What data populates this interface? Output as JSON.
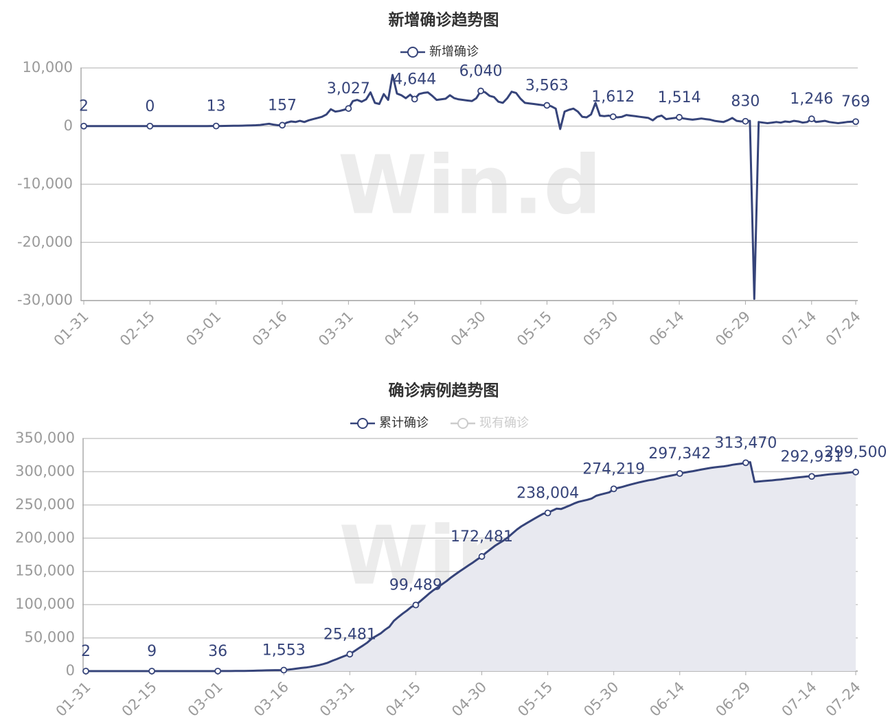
{
  "chart_data": [
    {
      "type": "line",
      "title": "新增确诊趋势图",
      "watermark": "Win.d",
      "legend": "top",
      "grid": true,
      "categories": [
        "01-31",
        null,
        null,
        null,
        null,
        null,
        null,
        null,
        null,
        null,
        null,
        null,
        null,
        null,
        null,
        "02-15",
        null,
        null,
        null,
        null,
        null,
        null,
        null,
        null,
        null,
        null,
        null,
        null,
        null,
        null,
        "03-01",
        null,
        null,
        null,
        null,
        null,
        null,
        null,
        null,
        null,
        null,
        null,
        null,
        null,
        null,
        "03-16",
        null,
        null,
        null,
        null,
        null,
        null,
        null,
        null,
        null,
        null,
        null,
        null,
        null,
        null,
        "03-31",
        null,
        null,
        null,
        null,
        null,
        null,
        null,
        null,
        null,
        null,
        null,
        null,
        null,
        null,
        "04-15",
        null,
        null,
        null,
        null,
        null,
        null,
        null,
        null,
        null,
        null,
        null,
        null,
        null,
        null,
        "04-30",
        null,
        null,
        null,
        null,
        null,
        null,
        null,
        null,
        null,
        null,
        null,
        null,
        null,
        null,
        "05-15",
        null,
        null,
        null,
        null,
        null,
        null,
        null,
        null,
        null,
        null,
        null,
        null,
        null,
        null,
        "05-30",
        null,
        null,
        null,
        null,
        null,
        null,
        null,
        null,
        null,
        null,
        null,
        null,
        null,
        null,
        "06-14",
        null,
        null,
        null,
        null,
        null,
        null,
        null,
        null,
        null,
        null,
        null,
        null,
        null,
        null,
        "06-29",
        null,
        null,
        null,
        null,
        null,
        null,
        null,
        null,
        null,
        null,
        null,
        null,
        null,
        null,
        "07-14",
        null,
        null,
        null,
        null,
        null,
        null,
        null,
        null,
        null,
        "07-24"
      ],
      "ylim": [
        -30000,
        10000
      ],
      "yticks": [
        {
          "value": -30000,
          "label": "-30,000"
        },
        {
          "value": -20000,
          "label": "-20,000"
        },
        {
          "value": -10000,
          "label": "-10,000"
        },
        0,
        {
          "value": 10000,
          "label": "10,000"
        }
      ],
      "series": [
        {
          "name": "新增确诊",
          "color": "#36447a",
          "values": [
            2,
            1,
            0,
            0,
            0,
            0,
            0,
            0,
            0,
            0,
            0,
            0,
            0,
            0,
            0,
            0,
            0,
            0,
            0,
            0,
            0,
            1,
            2,
            2,
            3,
            3,
            5,
            8,
            10,
            12,
            13,
            20,
            30,
            40,
            50,
            60,
            80,
            100,
            120,
            150,
            200,
            300,
            400,
            250,
            150,
            157,
            600,
            800,
            700,
            900,
            700,
            1000,
            1200,
            1400,
            1600,
            2000,
            2900,
            2500,
            2600,
            2800,
            3027,
            4300,
            4500,
            4200,
            4600,
            5800,
            4000,
            3800,
            5500,
            4500,
            8800,
            5600,
            5300,
            4800,
            5400,
            4644,
            5500,
            5700,
            5800,
            5200,
            4500,
            4600,
            4700,
            5300,
            4800,
            4600,
            4500,
            4400,
            4300,
            4800,
            6040,
            5800,
            5200,
            5000,
            4200,
            4000,
            4800,
            5900,
            5700,
            4700,
            4000,
            3900,
            3800,
            3700,
            3600,
            3563,
            3400,
            3000,
            -500,
            2500,
            2800,
            3000,
            2500,
            1600,
            1500,
            2000,
            4000,
            1800,
            1700,
            1800,
            1612,
            1500,
            1600,
            1900,
            1800,
            1700,
            1600,
            1500,
            1400,
            1000,
            1600,
            1800,
            1200,
            1300,
            1400,
            1514,
            1300,
            1200,
            1100,
            1200,
            1300,
            1200,
            1100,
            900,
            800,
            700,
            1000,
            1400,
            900,
            800,
            830,
            900,
            -29700,
            700,
            600,
            500,
            600,
            700,
            600,
            800,
            700,
            900,
            800,
            600,
            700,
            1246,
            700,
            800,
            900,
            700,
            600,
            500,
            600,
            700,
            750,
            769
          ],
          "value_labels": [
            "2",
            null,
            null,
            null,
            null,
            null,
            null,
            null,
            null,
            null,
            null,
            null,
            null,
            null,
            null,
            "0",
            null,
            null,
            null,
            null,
            null,
            null,
            null,
            null,
            null,
            null,
            null,
            null,
            null,
            null,
            "13",
            null,
            null,
            null,
            null,
            null,
            null,
            null,
            null,
            null,
            null,
            null,
            null,
            null,
            null,
            "157",
            null,
            null,
            null,
            null,
            null,
            null,
            null,
            null,
            null,
            null,
            null,
            null,
            null,
            null,
            "3,027",
            null,
            null,
            null,
            null,
            null,
            null,
            null,
            null,
            null,
            null,
            null,
            null,
            null,
            null,
            "4,644",
            null,
            null,
            null,
            null,
            null,
            null,
            null,
            null,
            null,
            null,
            null,
            null,
            null,
            null,
            "6,040",
            null,
            null,
            null,
            null,
            null,
            null,
            null,
            null,
            null,
            null,
            null,
            null,
            null,
            null,
            "3,563",
            null,
            null,
            null,
            null,
            null,
            null,
            null,
            null,
            null,
            null,
            null,
            null,
            null,
            null,
            "1,612",
            null,
            null,
            null,
            null,
            null,
            null,
            null,
            null,
            null,
            null,
            null,
            null,
            null,
            null,
            "1,514",
            null,
            null,
            null,
            null,
            null,
            null,
            null,
            null,
            null,
            null,
            null,
            null,
            null,
            null,
            "830",
            null,
            null,
            null,
            null,
            null,
            null,
            null,
            null,
            null,
            null,
            null,
            null,
            null,
            null,
            "1,246",
            null,
            null,
            null,
            null,
            null,
            null,
            null,
            null,
            null,
            "769"
          ]
        }
      ]
    },
    {
      "type": "line",
      "title": "确诊病例趋势图",
      "watermark": "Win.d",
      "legend": "top",
      "grid": true,
      "area": true,
      "area_color": "#e8e9f0",
      "categories": [
        "01-31",
        null,
        null,
        null,
        null,
        null,
        null,
        null,
        null,
        null,
        null,
        null,
        null,
        null,
        null,
        "02-15",
        null,
        null,
        null,
        null,
        null,
        null,
        null,
        null,
        null,
        null,
        null,
        null,
        null,
        null,
        "03-01",
        null,
        null,
        null,
        null,
        null,
        null,
        null,
        null,
        null,
        null,
        null,
        null,
        null,
        null,
        "03-16",
        null,
        null,
        null,
        null,
        null,
        null,
        null,
        null,
        null,
        null,
        null,
        null,
        null,
        null,
        "03-31",
        null,
        null,
        null,
        null,
        null,
        null,
        null,
        null,
        null,
        null,
        null,
        null,
        null,
        null,
        "04-15",
        null,
        null,
        null,
        null,
        null,
        null,
        null,
        null,
        null,
        null,
        null,
        null,
        null,
        null,
        "04-30",
        null,
        null,
        null,
        null,
        null,
        null,
        null,
        null,
        null,
        null,
        null,
        null,
        null,
        null,
        "05-15",
        null,
        null,
        null,
        null,
        null,
        null,
        null,
        null,
        null,
        null,
        null,
        null,
        null,
        null,
        "05-30",
        null,
        null,
        null,
        null,
        null,
        null,
        null,
        null,
        null,
        null,
        null,
        null,
        null,
        null,
        "06-14",
        null,
        null,
        null,
        null,
        null,
        null,
        null,
        null,
        null,
        null,
        null,
        null,
        null,
        null,
        "06-29",
        null,
        null,
        null,
        null,
        null,
        null,
        null,
        null,
        null,
        null,
        null,
        null,
        null,
        null,
        "07-14",
        null,
        null,
        null,
        null,
        null,
        null,
        null,
        null,
        null,
        "07-24"
      ],
      "ylim": [
        0,
        350000
      ],
      "yticks": [
        0,
        {
          "value": 50000,
          "label": "50,000"
        },
        {
          "value": 100000,
          "label": "100,000"
        },
        {
          "value": 150000,
          "label": "150,000"
        },
        {
          "value": 200000,
          "label": "200,000"
        },
        {
          "value": 250000,
          "label": "250,000"
        },
        {
          "value": 300000,
          "label": "300,000"
        },
        {
          "value": 350000,
          "label": "350,000"
        }
      ],
      "series": [
        {
          "name": "累计确诊",
          "color": "#36447a",
          "values": [
            2,
            3,
            3,
            4,
            5,
            5,
            6,
            6,
            7,
            7,
            8,
            8,
            8,
            9,
            9,
            9,
            10,
            10,
            11,
            12,
            13,
            14,
            16,
            18,
            20,
            22,
            25,
            28,
            31,
            34,
            36,
            56,
            86,
            126,
            176,
            236,
            316,
            416,
            536,
            686,
            886,
            1100,
            1300,
            1400,
            1450,
            1553,
            2200,
            3000,
            3800,
            4700,
            5400,
            6400,
            7600,
            9000,
            10600,
            12600,
            15500,
            18000,
            20600,
            23200,
            25481,
            29800,
            34300,
            38500,
            43100,
            48900,
            52900,
            56700,
            62200,
            66700,
            75500,
            81100,
            86400,
            91200,
            96600,
            99489,
            105000,
            110700,
            116500,
            121700,
            126200,
            130800,
            135500,
            140800,
            145600,
            150200,
            154700,
            159100,
            163400,
            168200,
            172481,
            178300,
            183500,
            188500,
            192700,
            196700,
            201500,
            207400,
            213100,
            217800,
            221800,
            225700,
            229500,
            233200,
            236800,
            238004,
            241400,
            244400,
            243900,
            246400,
            249200,
            252200,
            254700,
            256300,
            257800,
            259800,
            263800,
            265600,
            267300,
            269100,
            274219,
            275700,
            277300,
            279200,
            281000,
            282700,
            284300,
            285800,
            287200,
            288200,
            289800,
            291600,
            292800,
            294100,
            295500,
            297342,
            298600,
            299800,
            300900,
            302100,
            303400,
            304600,
            305700,
            306600,
            307400,
            308100,
            309100,
            310500,
            311400,
            312200,
            313470,
            314370,
            284670,
            285370,
            285970,
            286470,
            287070,
            287770,
            288370,
            289170,
            289870,
            290770,
            291570,
            292170,
            292870,
            292931,
            293600,
            294400,
            295300,
            296000,
            296600,
            297100,
            297700,
            298400,
            299100,
            299500
          ],
          "value_labels": [
            "2",
            null,
            null,
            null,
            null,
            null,
            null,
            null,
            null,
            null,
            null,
            null,
            null,
            null,
            null,
            "9",
            null,
            null,
            null,
            null,
            null,
            null,
            null,
            null,
            null,
            null,
            null,
            null,
            null,
            null,
            "36",
            null,
            null,
            null,
            null,
            null,
            null,
            null,
            null,
            null,
            null,
            null,
            null,
            null,
            null,
            "1,553",
            null,
            null,
            null,
            null,
            null,
            null,
            null,
            null,
            null,
            null,
            null,
            null,
            null,
            null,
            "25,481",
            null,
            null,
            null,
            null,
            null,
            null,
            null,
            null,
            null,
            null,
            null,
            null,
            null,
            null,
            "99,489",
            null,
            null,
            null,
            null,
            null,
            null,
            null,
            null,
            null,
            null,
            null,
            null,
            null,
            null,
            "172,481",
            null,
            null,
            null,
            null,
            null,
            null,
            null,
            null,
            null,
            null,
            null,
            null,
            null,
            null,
            "238,004",
            null,
            null,
            null,
            null,
            null,
            null,
            null,
            null,
            null,
            null,
            null,
            null,
            null,
            null,
            "274,219",
            null,
            null,
            null,
            null,
            null,
            null,
            null,
            null,
            null,
            null,
            null,
            null,
            null,
            null,
            "297,342",
            null,
            null,
            null,
            null,
            null,
            null,
            null,
            null,
            null,
            null,
            null,
            null,
            null,
            null,
            "313,470",
            null,
            null,
            null,
            null,
            null,
            null,
            null,
            null,
            null,
            null,
            null,
            null,
            null,
            null,
            "292,931",
            null,
            null,
            null,
            null,
            null,
            null,
            null,
            null,
            null,
            "299,500"
          ]
        },
        {
          "name": "现有确诊",
          "color": "#cccccc",
          "visible": false
        }
      ]
    }
  ]
}
